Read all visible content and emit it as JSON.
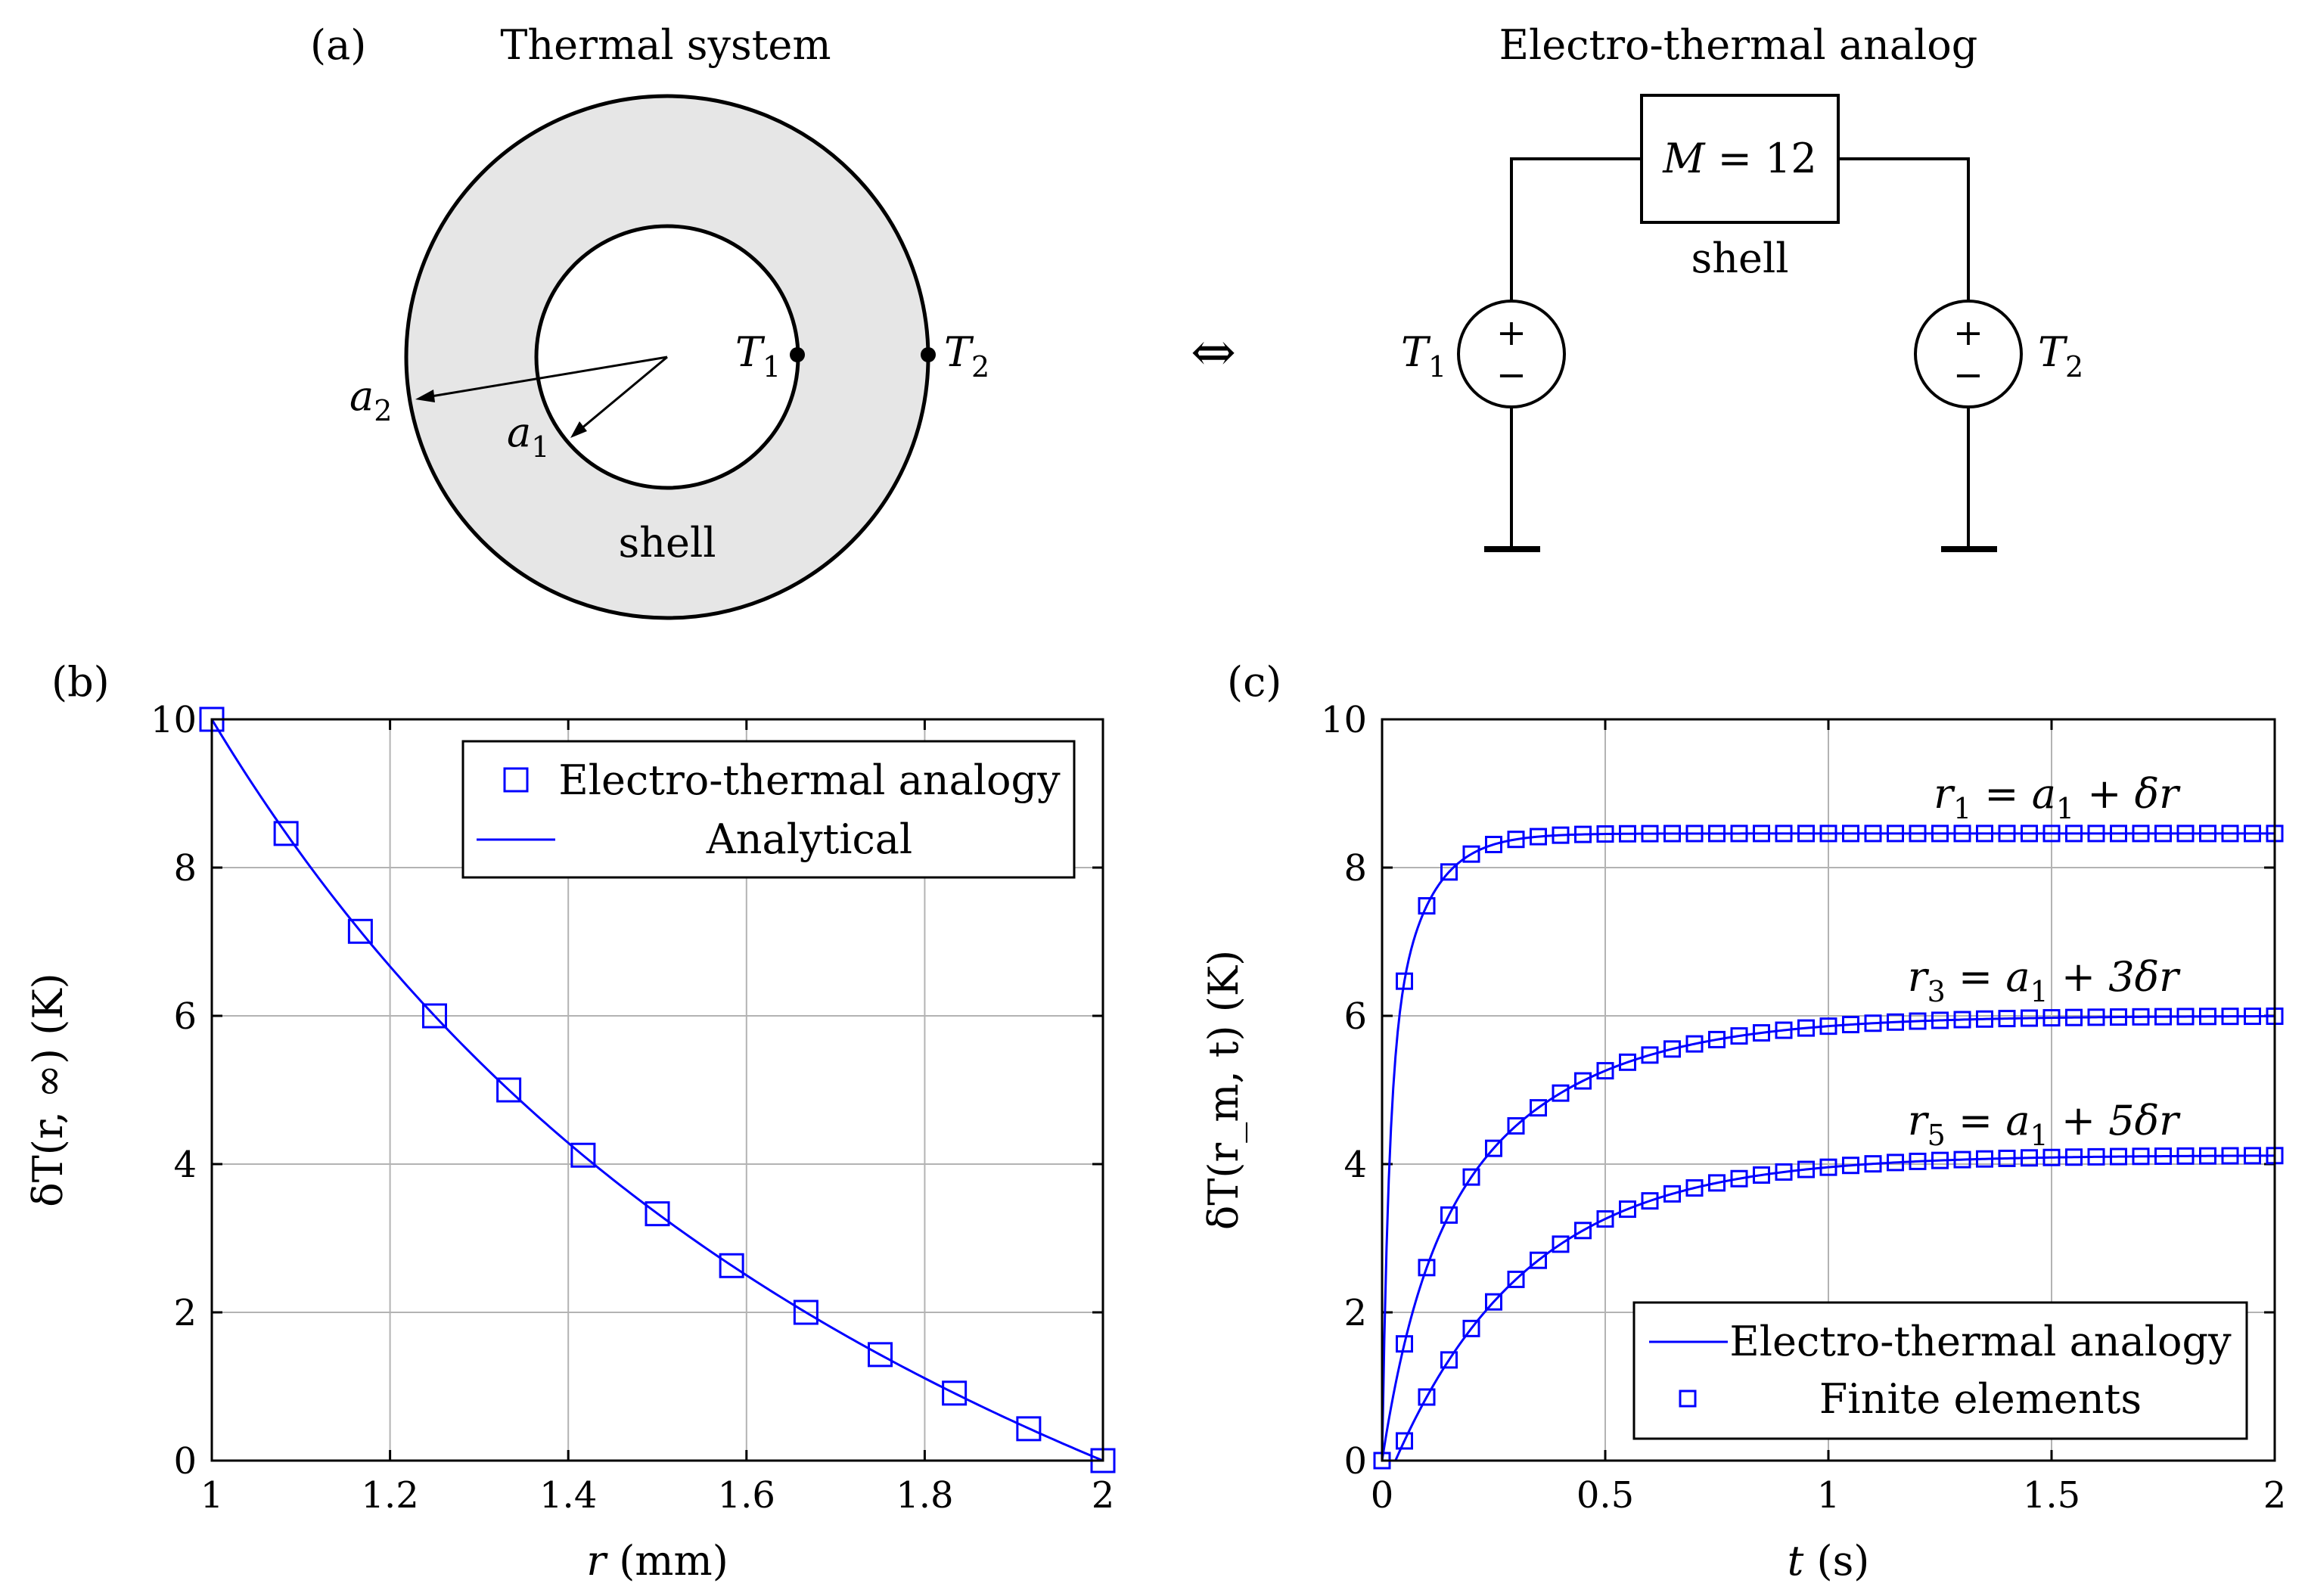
{
  "panel_a": {
    "tag": "(a)",
    "thermal_title": "Thermal system",
    "analog_title": "Electro-thermal analog",
    "shell_label": "shell",
    "a1_label": "a",
    "a1_sub": "1",
    "a2_label": "a",
    "a2_sub": "2",
    "T1_label": "T",
    "T1_sub": "1",
    "T2_label": "T",
    "T2_sub": "2",
    "equiv_symbol": "⇔",
    "box_label_M": "M",
    "box_label_eq": " = 12",
    "box_sub_label": "shell",
    "plus": "+",
    "minus": "−",
    "colors": {
      "shell_fill": "#e6e6e6",
      "line": "#000000"
    }
  },
  "chart_data": [
    {
      "panel": "(b)",
      "type": "line+scatter",
      "xlabel": "r (mm)",
      "xlabel_var": "r",
      "xlabel_unit": " (mm)",
      "ylabel": "δT(r, ∞) (K)",
      "xlim": [
        1,
        2
      ],
      "ylim": [
        0,
        10
      ],
      "xticks": [
        1,
        1.2,
        1.4,
        1.6,
        1.8,
        2
      ],
      "xtick_labels": [
        "1",
        "1.2",
        "1.4",
        "1.6",
        "1.8",
        "2"
      ],
      "yticks": [
        0,
        2,
        4,
        6,
        8,
        10
      ],
      "ytick_labels": [
        "0",
        "2",
        "4",
        "6",
        "8",
        "10"
      ],
      "grid": true,
      "legend_position": "top-right",
      "legend": [
        "Electro-thermal analogy",
        "Analytical"
      ],
      "series": [
        {
          "name": "Electro-thermal analogy",
          "marker": "square",
          "x": [
            1,
            1.0833,
            1.1667,
            1.25,
            1.3333,
            1.4167,
            1.5,
            1.5833,
            1.6667,
            1.75,
            1.8333,
            1.9167,
            2
          ],
          "y": [
            10,
            8.46,
            7.14,
            6.0,
            5.0,
            4.12,
            3.33,
            2.63,
            2.0,
            1.43,
            0.91,
            0.43,
            0
          ]
        },
        {
          "name": "Analytical",
          "style": "line",
          "formula": "20/r - 10"
        }
      ],
      "color": "#0000ff"
    },
    {
      "panel": "(c)",
      "type": "line+scatter",
      "xlabel": "t (s)",
      "xlabel_var": "t",
      "xlabel_unit": " (s)",
      "ylabel": "δT(r_m, t) (K)",
      "xlim": [
        0,
        2
      ],
      "ylim": [
        0,
        10
      ],
      "xticks": [
        0,
        0.5,
        1,
        1.5,
        2
      ],
      "xtick_labels": [
        "0",
        "0.5",
        "1",
        "1.5",
        "2"
      ],
      "yticks": [
        0,
        2,
        4,
        6,
        8,
        10
      ],
      "ytick_labels": [
        "0",
        "2",
        "4",
        "6",
        "8",
        "10"
      ],
      "grid": true,
      "legend_position": "bottom-right",
      "legend": [
        "Electro-thermal analogy",
        "Finite elements"
      ],
      "annotations": [
        {
          "lhs": "r",
          "sub": "1",
          "rhs": " = a",
          "rhs_sub": "1",
          "tail": " + δr"
        },
        {
          "lhs": "r",
          "sub": "3",
          "rhs": " = a",
          "rhs_sub": "1",
          "tail": " + 3δr"
        },
        {
          "lhs": "r",
          "sub": "5",
          "rhs": " = a",
          "rhs_sub": "1",
          "tail": " + 5δr"
        }
      ],
      "series": [
        {
          "name": "r1 = a1 + δr",
          "final": 8.46,
          "tau": [
            0.015,
            0.08
          ],
          "weights": [
            0.6,
            0.4
          ]
        },
        {
          "name": "r3 = a1 + 3δr",
          "final": 6.0,
          "tau": [
            0.08,
            0.3
          ],
          "weights": [
            0.35,
            0.65
          ]
        },
        {
          "name": "r5 = a1 + 5δr",
          "final": 4.12,
          "tau": [
            0.3
          ],
          "weights": [
            1.0
          ],
          "delay": 0.03
        }
      ],
      "sample_step": 0.05,
      "color": "#0000ff"
    }
  ]
}
